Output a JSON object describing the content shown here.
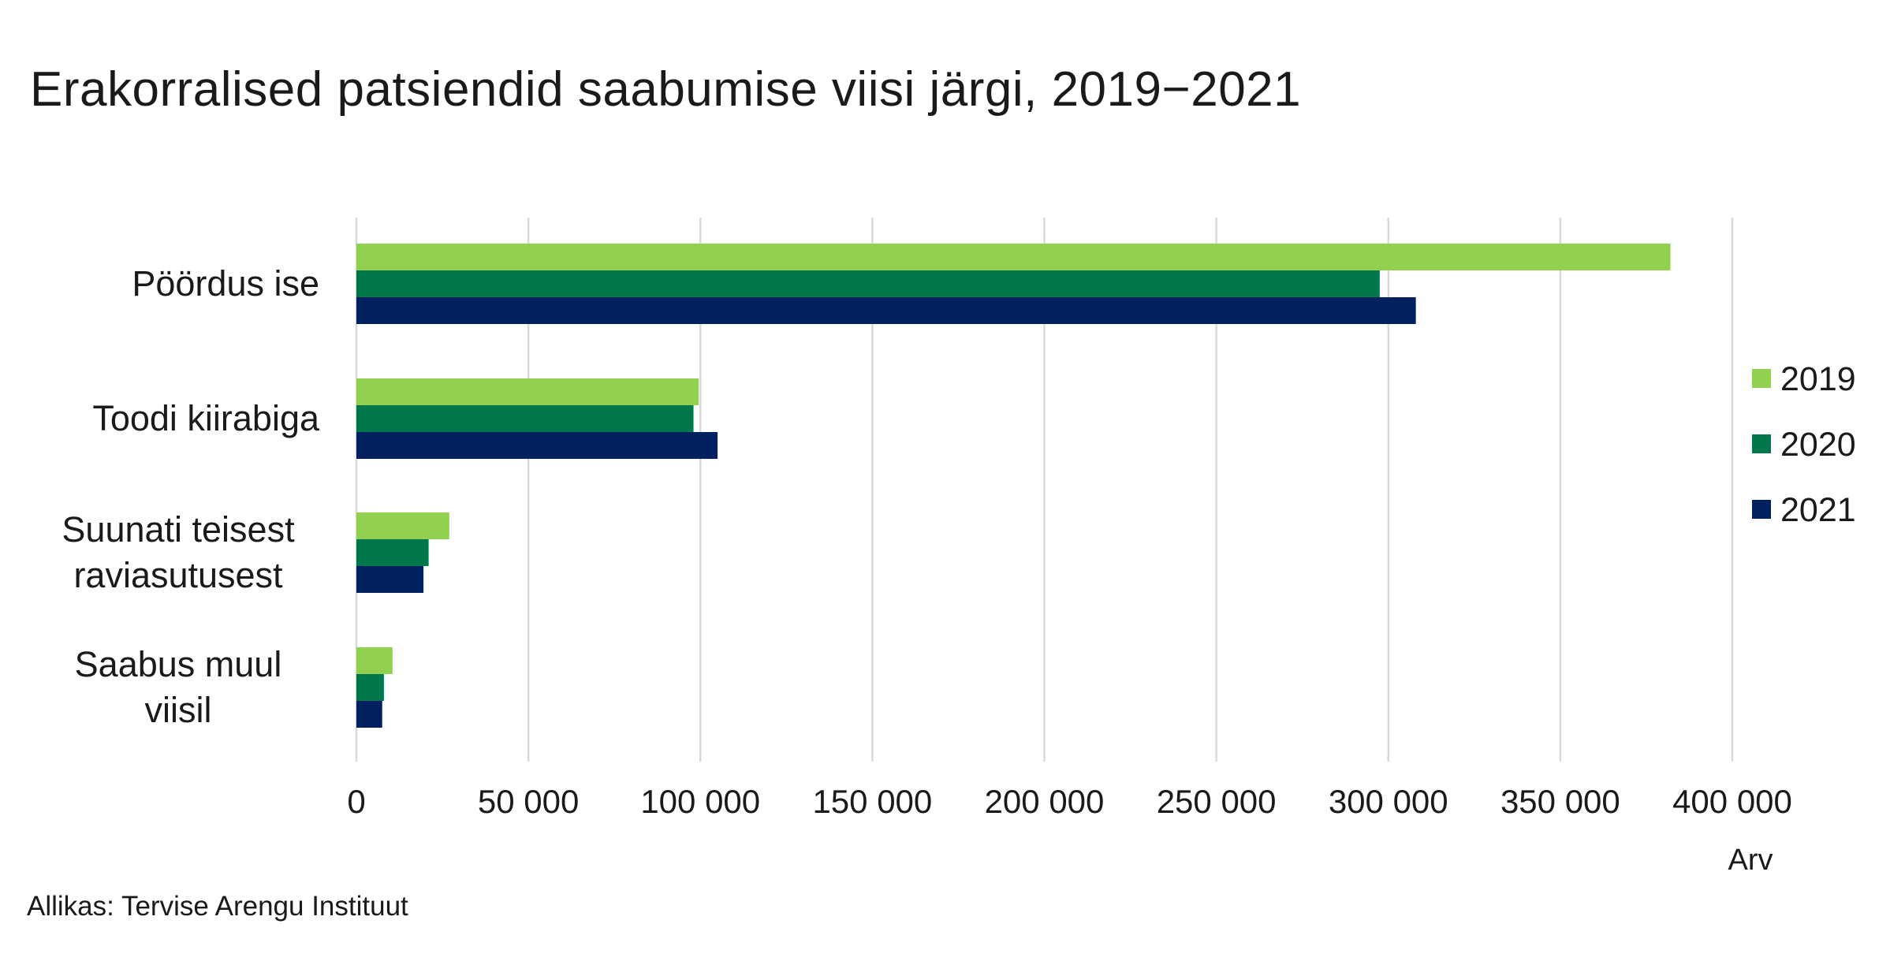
{
  "chart_data": {
    "type": "bar",
    "orientation": "horizontal",
    "title": "Erakorralised patsiendid saabumise viisi järgi, 2019−2021",
    "xlabel": "Arv",
    "ylabel": "",
    "categories": [
      [
        "Pöördus ise"
      ],
      [
        "Toodi kiirabiga"
      ],
      [
        "Suunati teisest",
        "raviasutusest"
      ],
      [
        "Saabus muul",
        "viisil"
      ]
    ],
    "series": [
      {
        "name": "2019",
        "color": "#92d050",
        "values": [
          382000,
          99500,
          27000,
          10500
        ]
      },
      {
        "name": "2020",
        "color": "#00774a",
        "values": [
          297500,
          98000,
          21000,
          8000
        ]
      },
      {
        "name": "2021",
        "color": "#002060",
        "values": [
          308000,
          105000,
          19500,
          7500
        ]
      }
    ],
    "xlim": [
      0,
      400000
    ],
    "xticks": [
      0,
      50000,
      100000,
      150000,
      200000,
      250000,
      300000,
      350000,
      400000
    ],
    "xtick_labels": [
      "0",
      "50 000",
      "100 000",
      "150 000",
      "200 000",
      "250 000",
      "300 000",
      "350 000",
      "400 000"
    ],
    "grid": "vertical",
    "legend_position": "right",
    "gridline_color": "#d9d9d9"
  },
  "source": "Allikas: Tervise Arengu Instituut"
}
